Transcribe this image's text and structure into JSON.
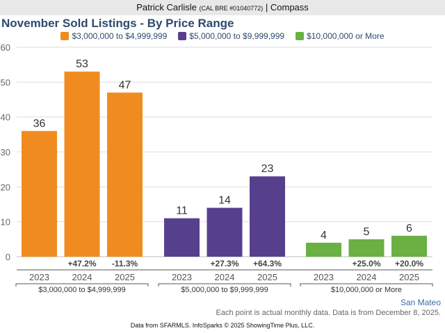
{
  "header": {
    "agent": "Patrick Carlisle",
    "license": "(CAL BRE #01040772)",
    "separator": "|",
    "brokerage": "Compass"
  },
  "region": "San Mateo",
  "note": "Each point is actual monthly data. Data is from December 8, 2025.",
  "footer": "Data from SFARMLS. InfoSparks © 2025 ShowingTime Plus, LLC.",
  "chart_data": {
    "type": "bar",
    "title": "November Sold Listings - By Price Range",
    "xlabel": "",
    "ylabel": "",
    "ylim": [
      0,
      60
    ],
    "yticks": [
      0,
      10,
      20,
      30,
      40,
      50,
      60
    ],
    "grid": true,
    "legend_position": "top-center",
    "categories": [
      "2023",
      "2024",
      "2025"
    ],
    "series": [
      {
        "name": "$3,000,000 to $4,999,999",
        "color": "#f08c1f",
        "values": [
          36,
          53,
          47
        ],
        "changes": [
          "",
          "+47.2%",
          "-11.3%"
        ]
      },
      {
        "name": "$5,000,000 to $9,999,999",
        "color": "#56408e",
        "values": [
          11,
          14,
          23
        ],
        "changes": [
          "",
          "+27.3%",
          "+64.3%"
        ]
      },
      {
        "name": "$10,000,000 or More",
        "color": "#6ab042",
        "values": [
          4,
          5,
          6
        ],
        "changes": [
          "",
          "+25.0%",
          "+20.0%"
        ]
      }
    ]
  }
}
